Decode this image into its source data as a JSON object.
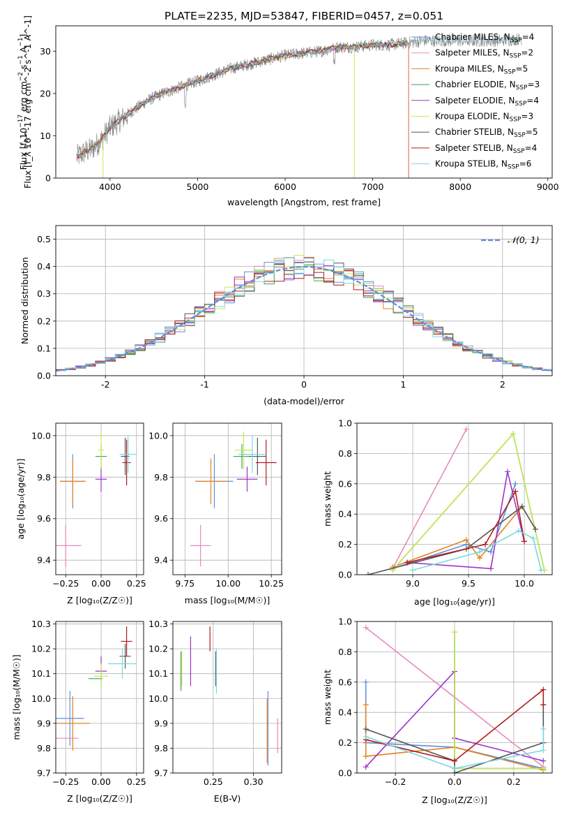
{
  "figure": {
    "title": "PLATE=2235, MJD=53847, FIBERID=0457, z=0.051"
  },
  "models": [
    {
      "label": "Chabrier MILES, N",
      "sub": "SSP",
      "suffix": "=4",
      "color": "#5e8fdc"
    },
    {
      "label": "Salpeter MILES, N",
      "sub": "SSP",
      "suffix": "=2",
      "color": "#e889bd"
    },
    {
      "label": "Kroupa MILES, N",
      "sub": "SSP",
      "suffix": "=5",
      "color": "#e6821e"
    },
    {
      "label": "Chabrier ELODIE, N",
      "sub": "SSP",
      "suffix": "=3",
      "color": "#3d9e54"
    },
    {
      "label": "Salpeter ELODIE, N",
      "sub": "SSP",
      "suffix": "=4",
      "color": "#9a34c9"
    },
    {
      "label": "Kroupa ELODIE, N",
      "sub": "SSP",
      "suffix": "=3",
      "color": "#c6ea55"
    },
    {
      "label": "Chabrier STELIB, N",
      "sub": "SSP",
      "suffix": "=5",
      "color": "#555555"
    },
    {
      "label": "Salpeter STELIB, N",
      "sub": "SSP",
      "suffix": "=4",
      "color": "#b31b1b"
    },
    {
      "label": "Kroupa STELIB, N",
      "sub": "SSP",
      "suffix": "=6",
      "color": "#7ad8e0"
    }
  ],
  "chart_data": [
    {
      "id": "spectrum",
      "type": "line",
      "xlabel": "wavelength [Angstrom, rest frame]",
      "ylabel": "Flux [f_λ 10^-17 erg cm^-2 s^-1 A^-1]",
      "xlim": [
        3380,
        9050
      ],
      "ylim": [
        0,
        36
      ],
      "xticks": [
        4000,
        5000,
        6000,
        7000,
        8000,
        9000
      ],
      "yticks": [
        0,
        10,
        20,
        30
      ],
      "continuum": {
        "wavelength": [
          3620,
          3700,
          3800,
          3900,
          4000,
          4200,
          4400,
          4600,
          4800,
          5000,
          5200,
          5400,
          5600,
          5800,
          6000,
          6200,
          6400,
          6600,
          6800,
          7000,
          7200,
          7400,
          7600,
          8000,
          8400,
          8800
        ],
        "flux": [
          5,
          6,
          7,
          9,
          12,
          15,
          18,
          20,
          21.5,
          23,
          24.5,
          26,
          27,
          28,
          29,
          29.5,
          30,
          31,
          31,
          31.5,
          31.5,
          32,
          32.5,
          32.5,
          32.5,
          33
        ]
      },
      "dropouts": [
        3920,
        6790,
        7410
      ]
    },
    {
      "id": "residuals",
      "type": "line",
      "xlabel": "(data-model)/error",
      "ylabel": "Normed distribution",
      "xlim": [
        -2.5,
        2.5
      ],
      "ylim": [
        0,
        0.55
      ],
      "xticks": [
        -2,
        -1,
        0,
        1,
        2
      ],
      "yticks": [
        0.0,
        0.1,
        0.2,
        0.3,
        0.4,
        0.5
      ],
      "legend": {
        "label": "𝒩(0, 1)",
        "position": "upper right"
      },
      "gaussian": {
        "mu": 0,
        "sigma": 1,
        "color": "#5e8fdc"
      },
      "histogram": {
        "bin_width": 0.1,
        "range": [
          -2.5,
          2.5
        ],
        "spread": 0.06
      }
    },
    {
      "id": "age-vs-Z",
      "type": "scatter",
      "xlabel": "Z [log₁₀(Z/Z☉)]",
      "ylabel": "age  [log₁₀(age/yr)]",
      "xlim": [
        -0.32,
        0.3
      ],
      "ylim": [
        9.33,
        10.06
      ],
      "xticks": [
        -0.25,
        0.0,
        0.25
      ],
      "yticks": [
        9.4,
        9.6,
        9.8,
        10.0
      ],
      "xticklabels": [
        "−0.25",
        "0.00",
        "0.25"
      ],
      "yticklabels": [
        "9.4",
        "9.6",
        "9.8",
        "10.0"
      ],
      "points": [
        {
          "m": 0,
          "x": -0.2,
          "y": 9.78,
          "xerr": 0.09,
          "yerr": 0.13
        },
        {
          "m": 1,
          "x": -0.25,
          "y": 9.47,
          "xerr": 0.11,
          "yerr": 0.1
        },
        {
          "m": 2,
          "x": -0.2,
          "y": 9.78,
          "xerr": 0.09,
          "yerr": 0.11
        },
        {
          "m": 3,
          "x": 0.0,
          "y": 9.9,
          "xerr": 0.04,
          "yerr": 0.06
        },
        {
          "m": 4,
          "x": 0.0,
          "y": 9.79,
          "xerr": 0.04,
          "yerr": 0.06
        },
        {
          "m": 5,
          "x": 0.0,
          "y": 9.93,
          "xerr": 0.02,
          "yerr": 0.09
        },
        {
          "m": 6,
          "x": 0.17,
          "y": 9.9,
          "xerr": 0.03,
          "yerr": 0.09
        },
        {
          "m": 7,
          "x": 0.18,
          "y": 9.87,
          "xerr": 0.03,
          "yerr": 0.11
        },
        {
          "m": 8,
          "x": 0.19,
          "y": 9.91,
          "xerr": 0.06,
          "yerr": 0.09
        }
      ]
    },
    {
      "id": "age-vs-mass",
      "type": "scatter",
      "xlabel": "mass [log₁₀(M/M☉)]",
      "ylabel": "",
      "xlim": [
        9.68,
        10.31
      ],
      "ylim": [
        9.33,
        10.06
      ],
      "xticks": [
        9.75,
        10.0,
        10.25
      ],
      "yticks": [
        9.4,
        9.6,
        9.8,
        10.0
      ],
      "xticklabels": [
        "9.75",
        "10.00",
        "10.25"
      ],
      "yticklabels": [
        "9.4",
        "9.6",
        "9.8",
        "10.0"
      ],
      "points": [
        {
          "m": 0,
          "x": 9.92,
          "y": 9.78,
          "xerr": 0.11,
          "yerr": 0.13
        },
        {
          "m": 1,
          "x": 9.84,
          "y": 9.47,
          "xerr": 0.06,
          "yerr": 0.1
        },
        {
          "m": 2,
          "x": 9.9,
          "y": 9.78,
          "xerr": 0.09,
          "yerr": 0.11
        },
        {
          "m": 3,
          "x": 10.08,
          "y": 9.9,
          "xerr": 0.05,
          "yerr": 0.06
        },
        {
          "m": 4,
          "x": 10.11,
          "y": 9.79,
          "xerr": 0.06,
          "yerr": 0.06
        },
        {
          "m": 5,
          "x": 10.09,
          "y": 9.93,
          "xerr": 0.05,
          "yerr": 0.09
        },
        {
          "m": 6,
          "x": 10.17,
          "y": 9.9,
          "xerr": 0.05,
          "yerr": 0.09
        },
        {
          "m": 7,
          "x": 10.22,
          "y": 9.87,
          "xerr": 0.06,
          "yerr": 0.11
        },
        {
          "m": 8,
          "x": 10.14,
          "y": 9.91,
          "xerr": 0.08,
          "yerr": 0.09
        }
      ]
    },
    {
      "id": "mass-weight-vs-age",
      "type": "line",
      "xlabel": "age  [log₁₀(age/yr)]",
      "ylabel": "mass weight",
      "xlim": [
        8.5,
        10.25
      ],
      "ylim": [
        0,
        1.0
      ],
      "xticks": [
        9.0,
        9.5,
        10.0
      ],
      "yticks": [
        0.0,
        0.2,
        0.4,
        0.6,
        0.8,
        1.0
      ],
      "xticklabels": [
        "9.0",
        "9.5",
        "10.0"
      ],
      "yticklabels": [
        "0.0",
        "0.2",
        "0.4",
        "0.6",
        "0.8",
        "1.0"
      ],
      "series": [
        {
          "m": 0,
          "x": [
            8.82,
            9.48,
            9.7,
            9.92
          ],
          "y": [
            0.04,
            0.2,
            0.15,
            0.6
          ]
        },
        {
          "m": 1,
          "x": [
            8.82,
            9.48
          ],
          "y": [
            0.04,
            0.96
          ]
        },
        {
          "m": 2,
          "x": [
            8.82,
            9.48,
            9.6,
            9.98
          ],
          "y": [
            0.05,
            0.23,
            0.11,
            0.45
          ]
        },
        {
          "m": 3,
          "x": [
            8.82,
            9.9,
            10.18
          ],
          "y": [
            0.03,
            0.93,
            0.03
          ]
        },
        {
          "m": 4,
          "x": [
            8.95,
            9.7,
            9.85,
            10.0
          ],
          "y": [
            0.08,
            0.04,
            0.68,
            0.22
          ]
        },
        {
          "m": 5,
          "x": [
            8.82,
            9.9,
            10.18
          ],
          "y": [
            0.03,
            0.93,
            0.03
          ]
        },
        {
          "m": 6,
          "x": [
            8.6,
            9.48,
            9.98,
            10.1
          ],
          "y": [
            0.0,
            0.17,
            0.45,
            0.3
          ]
        },
        {
          "m": 7,
          "x": [
            8.95,
            9.65,
            9.92,
            10.0
          ],
          "y": [
            0.08,
            0.2,
            0.55,
            0.22
          ]
        },
        {
          "m": 8,
          "x": [
            9.0,
            9.6,
            9.95,
            10.08,
            10.15
          ],
          "y": [
            0.03,
            0.15,
            0.29,
            0.24,
            0.03
          ]
        }
      ]
    },
    {
      "id": "mass-vs-Z",
      "type": "scatter",
      "xlabel": "Z [log₁₀(Z/Z☉)]",
      "ylabel": "mass [log₁₀(M/M☉)]",
      "xlim": [
        -0.32,
        0.3
      ],
      "ylim": [
        9.7,
        10.31
      ],
      "xticks": [
        -0.25,
        0.0,
        0.25
      ],
      "yticks": [
        9.7,
        9.8,
        9.9,
        10.0,
        10.1,
        10.2,
        10.3
      ],
      "xticklabels": [
        "−0.25",
        "0.00",
        "0.25"
      ],
      "yticklabels": [
        "9.7",
        "9.8",
        "9.9",
        "10.0",
        "10.1",
        "10.2",
        "10.3"
      ],
      "points": [
        {
          "m": 0,
          "x": -0.22,
          "y": 9.92,
          "xerr": 0.1,
          "yerr": 0.11
        },
        {
          "m": 1,
          "x": -0.26,
          "y": 9.84,
          "xerr": 0.1,
          "yerr": 0.0
        },
        {
          "m": 2,
          "x": -0.2,
          "y": 9.9,
          "xerr": 0.12,
          "yerr": 0.11
        },
        {
          "m": 3,
          "x": -0.04,
          "y": 10.08,
          "xerr": 0.05,
          "yerr": 0.0
        },
        {
          "m": 4,
          "x": 0.0,
          "y": 10.11,
          "xerr": 0.04,
          "yerr": 0.06
        },
        {
          "m": 5,
          "x": 0.0,
          "y": 10.09,
          "xerr": 0.05,
          "yerr": 0.05
        },
        {
          "m": 6,
          "x": 0.17,
          "y": 10.17,
          "xerr": 0.04,
          "yerr": 0.05
        },
        {
          "m": 7,
          "x": 0.18,
          "y": 10.23,
          "xerr": 0.04,
          "yerr": 0.06
        },
        {
          "m": 8,
          "x": 0.15,
          "y": 10.14,
          "xerr": 0.1,
          "yerr": 0.06
        }
      ]
    },
    {
      "id": "mass-vs-EBV",
      "type": "scatter",
      "xlabel": "E(B-V)",
      "ylabel": "",
      "xlim": [
        0.2,
        0.335
      ],
      "ylim": [
        9.7,
        10.31
      ],
      "xticks": [
        0.25,
        0.3
      ],
      "yticks": [
        9.7,
        9.8,
        9.9,
        10.0,
        10.1,
        10.2,
        10.3
      ],
      "xticklabels": [
        "0.25",
        "0.30"
      ],
      "yticklabels": [
        "9.7",
        "9.8",
        "9.9",
        "10.0",
        "10.1",
        "10.2",
        "10.3"
      ],
      "points": [
        {
          "m": 0,
          "x": 0.318,
          "y": 9.88,
          "xerr": 0.0,
          "yerr": 0.15
        },
        {
          "m": 1,
          "x": 0.33,
          "y": 9.85,
          "xerr": 0.0,
          "yerr": 0.07
        },
        {
          "m": 2,
          "x": 0.317,
          "y": 9.87,
          "xerr": 0.0,
          "yerr": 0.13
        },
        {
          "m": 3,
          "x": 0.21,
          "y": 10.11,
          "xerr": 0.0,
          "yerr": 0.08
        },
        {
          "m": 4,
          "x": 0.222,
          "y": 10.15,
          "xerr": 0.0,
          "yerr": 0.1
        },
        {
          "m": 5,
          "x": 0.211,
          "y": 10.12,
          "xerr": 0.0,
          "yerr": 0.07
        },
        {
          "m": 6,
          "x": 0.253,
          "y": 10.12,
          "xerr": 0.0,
          "yerr": 0.07
        },
        {
          "m": 7,
          "x": 0.246,
          "y": 10.24,
          "xerr": 0.0,
          "yerr": 0.05
        },
        {
          "m": 8,
          "x": 0.254,
          "y": 10.11,
          "xerr": 0.0,
          "yerr": 0.09
        }
      ]
    },
    {
      "id": "mass-weight-vs-Z",
      "type": "line",
      "xlabel": "Z [log₁₀(Z/Z☉)]",
      "ylabel": "mass weight",
      "xlim": [
        -0.33,
        0.33
      ],
      "ylim": [
        0,
        1.0
      ],
      "xticks": [
        -0.2,
        0.0,
        0.2
      ],
      "yticks": [
        0.0,
        0.2,
        0.4,
        0.6,
        0.8,
        1.0
      ],
      "xticklabels": [
        "−0.2",
        "0.0",
        "0.2"
      ],
      "yticklabels": [
        "0.0",
        "0.2",
        "0.4",
        "0.6",
        "0.8",
        "1.0"
      ],
      "series": [
        {
          "m": 0,
          "x": [
            -0.3,
            -0.3,
            0.0,
            0.3
          ],
          "y": [
            0.6,
            0.2,
            0.17,
            0.03
          ]
        },
        {
          "m": 1,
          "x": [
            -0.3,
            0.3
          ],
          "y": [
            0.96,
            0.04
          ]
        },
        {
          "m": 2,
          "x": [
            -0.3,
            -0.3,
            0.0,
            0.3,
            0.3
          ],
          "y": [
            0.45,
            0.11,
            0.17,
            0.02,
            0.03
          ]
        },
        {
          "m": 3,
          "x": [
            0.0,
            0.0,
            0.3
          ],
          "y": [
            0.93,
            0.03,
            0.03
          ]
        },
        {
          "m": 4,
          "x": [
            -0.3,
            0.0,
            0.0,
            0.3
          ],
          "y": [
            0.04,
            0.67,
            0.23,
            0.08
          ]
        },
        {
          "m": 5,
          "x": [
            0.0,
            0.0,
            0.3
          ],
          "y": [
            0.93,
            0.03,
            0.03
          ]
        },
        {
          "m": 6,
          "x": [
            -0.3,
            0.0,
            0.0,
            0.3,
            0.3
          ],
          "y": [
            0.29,
            0.08,
            0.0,
            0.2,
            0.45
          ]
        },
        {
          "m": 7,
          "x": [
            -0.3,
            0.0,
            0.3,
            0.3
          ],
          "y": [
            0.22,
            0.08,
            0.55,
            0.45
          ]
        },
        {
          "m": 8,
          "x": [
            -0.3,
            0.0,
            0.3,
            0.3
          ],
          "y": [
            0.24,
            0.03,
            0.15,
            0.29
          ]
        }
      ]
    }
  ]
}
